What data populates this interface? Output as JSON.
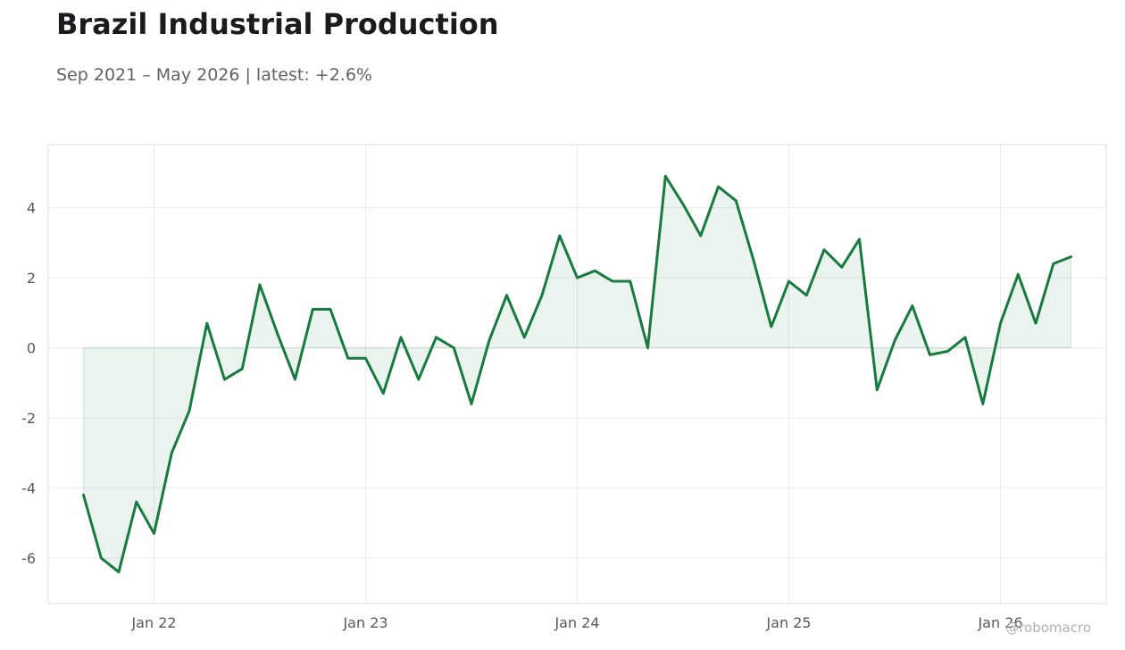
{
  "header": {
    "title": "Brazil Industrial Production",
    "subtitle": "Sep 2021 – May 2026 | latest: +2.6%"
  },
  "credit": "@robomacro",
  "colors": {
    "line": "#177a3e",
    "fill": "#177a3e",
    "grid": "#ececec",
    "frame": "#dddddd"
  },
  "chart_data": {
    "type": "area",
    "title": "Brazil Industrial Production",
    "subtitle": "Sep 2021 – May 2026 | latest: +2.6%",
    "xlabel": "",
    "ylabel": "",
    "grid": true,
    "legend": "none",
    "x_ticks": [
      {
        "date": "2022-01",
        "label": "Jan 22"
      },
      {
        "date": "2023-01",
        "label": "Jan 23"
      },
      {
        "date": "2024-01",
        "label": "Jan 24"
      },
      {
        "date": "2025-01",
        "label": "Jan 25"
      },
      {
        "date": "2026-01",
        "label": "Jan 26"
      }
    ],
    "y_ticks": [
      -6,
      -4,
      -2,
      0,
      2,
      4
    ],
    "xlim": [
      "2021-07",
      "2026-07"
    ],
    "ylim": [
      -7.3,
      5.8
    ],
    "series": [
      {
        "x": [
          "2021-09",
          "2021-10",
          "2021-11",
          "2021-12",
          "2022-01",
          "2022-02",
          "2022-03",
          "2022-04",
          "2022-05",
          "2022-06",
          "2022-07",
          "2022-08",
          "2022-09",
          "2022-10",
          "2022-11",
          "2022-12",
          "2023-01",
          "2023-02",
          "2023-03",
          "2023-04",
          "2023-05",
          "2023-06",
          "2023-07",
          "2023-08",
          "2023-09",
          "2023-10",
          "2023-11",
          "2023-12",
          "2024-01",
          "2024-02",
          "2024-03",
          "2024-04",
          "2024-05",
          "2024-06",
          "2024-07",
          "2024-08",
          "2024-09",
          "2024-10",
          "2024-11",
          "2024-12",
          "2025-01",
          "2025-02",
          "2025-03",
          "2025-04",
          "2025-05",
          "2025-06",
          "2025-07",
          "2025-08",
          "2025-09",
          "2025-10",
          "2025-11",
          "2025-12",
          "2026-01",
          "2026-02",
          "2026-03",
          "2026-04",
          "2026-05"
        ],
        "values": [
          -4.2,
          -6.0,
          -6.4,
          -4.4,
          -5.3,
          -3.0,
          -1.8,
          0.7,
          -0.9,
          -0.6,
          1.8,
          0.4,
          -0.9,
          1.1,
          1.1,
          -0.3,
          -0.3,
          -1.3,
          0.3,
          -0.9,
          0.3,
          0.0,
          -1.6,
          0.2,
          1.5,
          0.3,
          1.5,
          3.2,
          2.0,
          2.2,
          1.9,
          1.9,
          0.0,
          4.9,
          4.1,
          3.2,
          4.6,
          4.2,
          2.5,
          0.6,
          1.9,
          1.5,
          2.8,
          2.3,
          3.1,
          -1.2,
          0.2,
          1.2,
          -0.2,
          -0.1,
          0.3,
          -1.6,
          0.7,
          2.1,
          0.7,
          2.4,
          2.6
        ]
      }
    ]
  }
}
